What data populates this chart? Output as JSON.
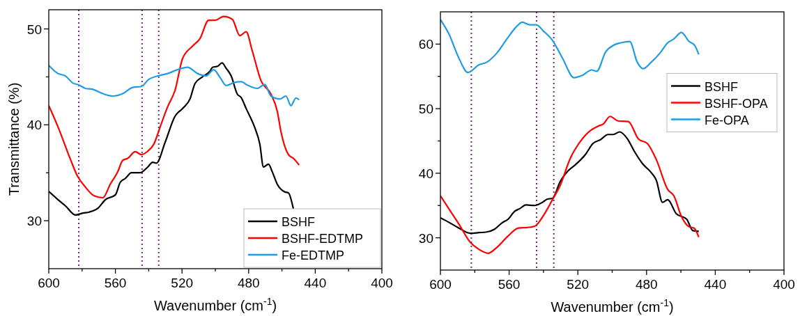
{
  "chart_data": [
    {
      "type": "line",
      "ylabel": "Transmittance (%)",
      "xlabel": "Wavenumber (cm$^{-1}$)",
      "xlim": [
        600,
        400
      ],
      "ylim": [
        25,
        52
      ],
      "xticks": [
        600,
        {
          "value": 580,
          "label": null
        },
        560,
        {
          "value": 540,
          "label": null
        },
        520,
        {
          "value": 500,
          "label": null
        },
        480,
        {
          "value": 460,
          "label": null
        },
        440,
        {
          "value": 420,
          "label": null
        },
        400
      ],
      "yticks": [
        30,
        {
          "value": 35,
          "label": null
        },
        40,
        {
          "value": 45,
          "label": null
        },
        50
      ],
      "legend": "bottom right",
      "grid": false,
      "marker": "none",
      "line_style": "solid",
      "ref_lines": [
        {
          "axis": "x",
          "value": 582,
          "color": "#7b1f8a",
          "line_style": "dotted"
        },
        {
          "axis": "x",
          "value": 544,
          "color": "#7b1f8a",
          "line_style": "dotted"
        },
        {
          "axis": "x",
          "value": 534,
          "color": "#7b1f8a",
          "line_style": "dotted"
        }
      ],
      "series": [
        {
          "name": "BSHF",
          "color": "#000000",
          "x": [
            600,
            594.5,
            590,
            584,
            579.5,
            575.8,
            570.5,
            566,
            560,
            557.1,
            554.1,
            550.3,
            545.1,
            540.6,
            537.6,
            535.4,
            530.1,
            524.2,
            519.7,
            515.2,
            512.2,
            507.7,
            503.2,
            501.7,
            498.7,
            496,
            493.5,
            490.5,
            486.8,
            484.5,
            481.5,
            476.3,
            473.3,
            471.1,
            468.1,
            465.8,
            462.8,
            458.3,
            456.1,
            453.1
          ],
          "values": [
            33.05,
            32.2,
            31.55,
            30.6,
            30.8,
            30.9,
            31.3,
            32.2,
            32.7,
            34,
            34.4,
            35,
            35,
            35.6,
            36.1,
            36,
            38.2,
            40.9,
            41.7,
            42.7,
            44.3,
            45,
            45.6,
            46,
            46.1,
            46.45,
            45.9,
            45.1,
            43.2,
            42.85,
            41.7,
            39.7,
            38,
            35.6,
            35.9,
            35.1,
            33.8,
            33,
            32.9,
            31.2
          ]
        },
        {
          "name": "BSHF-EDTMP",
          "color": "#ff0000",
          "x": [
            600,
            594.5,
            587,
            583.2,
            578,
            572.8,
            567.5,
            563.1,
            558.6,
            555.6,
            552.6,
            548.1,
            544.4,
            540.6,
            536.9,
            533.1,
            528.6,
            524.2,
            519.7,
            513.7,
            509.2,
            504,
            500.2,
            495,
            489.8,
            485.3,
            481.5,
            477.8,
            472.6,
            466.6,
            462.8,
            460.6,
            456.1,
            453.1,
            449.7
          ],
          "values": [
            42,
            39.8,
            36.4,
            34.8,
            33.5,
            32.6,
            32.4,
            33.8,
            35.1,
            36.3,
            36.5,
            37.2,
            36.9,
            37.25,
            38,
            39.8,
            41.9,
            43.6,
            46.9,
            48.2,
            49,
            50.9,
            50.9,
            51.3,
            51,
            49.3,
            49.7,
            47.7,
            44.6,
            43.2,
            41.4,
            39.3,
            36.9,
            36.5,
            35.8
          ]
        },
        {
          "name": "Fe-EDTMP",
          "color": "#1f9be6",
          "x": [
            600,
            594.5,
            590,
            585.5,
            582.5,
            578,
            573.5,
            567.5,
            561.6,
            555.6,
            549.6,
            544.4,
            539.9,
            534.6,
            528.6,
            522.7,
            516.7,
            510.7,
            505.5,
            501,
            497.2,
            493.5,
            489,
            484.5,
            480.8,
            474.8,
            470.3,
            466.6,
            461.3,
            457.6,
            454.6,
            451.6,
            449.7
          ],
          "values": [
            46.2,
            45.35,
            45.1,
            44.35,
            44.2,
            43.8,
            43.7,
            43.25,
            43,
            43.25,
            43.9,
            44,
            44.75,
            45.1,
            45.35,
            45.75,
            46,
            45.35,
            45.1,
            45.75,
            44.95,
            44.1,
            44.4,
            44.5,
            44.15,
            43.8,
            44.2,
            43,
            42.7,
            43,
            42,
            42.8,
            42.6
          ]
        }
      ]
    },
    {
      "type": "line",
      "xlabel": "Wavenumber (cm$^{-1}$)",
      "xlim": [
        600,
        400
      ],
      "ylim": [
        25,
        65
      ],
      "xticks": [
        600,
        {
          "value": 580,
          "label": null
        },
        560,
        {
          "value": 540,
          "label": null
        },
        520,
        {
          "value": 500,
          "label": null
        },
        480,
        {
          "value": 460,
          "label": null
        },
        440,
        {
          "value": 420,
          "label": null
        },
        400
      ],
      "yticks": [
        30,
        {
          "value": 35,
          "label": null
        },
        40,
        {
          "value": 45,
          "label": null
        },
        50,
        {
          "value": 55,
          "label": null
        },
        60
      ],
      "legend": "right",
      "grid": false,
      "marker": "none",
      "line_style": "solid",
      "ref_lines": [
        {
          "axis": "x",
          "value": 582,
          "color": "#7b1f8a",
          "line_style": "dotted"
        },
        {
          "axis": "x",
          "value": 544,
          "color": "#7b1f8a",
          "line_style": "dotted"
        },
        {
          "axis": "x",
          "value": 534,
          "color": "#7b1f8a",
          "line_style": "dotted"
        }
      ],
      "series": [
        {
          "name": "BSHF",
          "color": "#000000",
          "x": [
            600,
            595.1,
            589.2,
            582.6,
            577.5,
            573,
            568.6,
            564.2,
            560.5,
            556.8,
            553.9,
            550.2,
            545.1,
            540.6,
            537.7,
            534.8,
            530.3,
            525.9,
            521.5,
            515.6,
            511.2,
            506.8,
            502.4,
            499.4,
            495.7,
            491.3,
            486.9,
            482.4,
            477.3,
            474.3,
            470.7,
            467.7,
            462.6,
            456.7,
            453,
            449.6
          ],
          "values": [
            33.1,
            32.4,
            31.5,
            30.7,
            30.8,
            30.9,
            31.3,
            32.3,
            32.9,
            34.1,
            34.5,
            35.1,
            35,
            35.5,
            36,
            36.1,
            38.7,
            40.3,
            41.3,
            42.9,
            44.6,
            45.2,
            46,
            46,
            46.4,
            45.4,
            43.3,
            41.5,
            40.1,
            38.9,
            35.5,
            35.9,
            33.7,
            32.9,
            31.1,
            31
          ]
        },
        {
          "name": "BSHF-OPA",
          "color": "#ff0000",
          "x": [
            600,
            595.1,
            589.2,
            582.6,
            577.5,
            572.3,
            567.2,
            560.5,
            554.6,
            549.5,
            545.1,
            539.9,
            534.8,
            530.3,
            524.4,
            518.6,
            512.7,
            508.2,
            505.3,
            501.2,
            496.5,
            490.6,
            484.7,
            479.5,
            474.3,
            467.7,
            464.1,
            459.7,
            455.2,
            452.3,
            449.6
          ],
          "values": [
            36.5,
            34.5,
            32.1,
            29.3,
            28.2,
            27.6,
            28.5,
            30.3,
            31.5,
            31.6,
            31.8,
            33.5,
            35.9,
            38.1,
            42.3,
            44.9,
            46.6,
            47.3,
            47.6,
            48.8,
            48.1,
            48,
            45.3,
            44.6,
            42.1,
            37.5,
            36.5,
            33.3,
            31.7,
            31.5,
            30.1
          ]
        },
        {
          "name": "Fe-OPA",
          "color": "#1f9be6",
          "x": [
            600,
            595.1,
            589.2,
            584,
            577.5,
            573,
            567.2,
            561.3,
            555.4,
            552.4,
            548,
            544.3,
            539.9,
            534.8,
            528.9,
            522.2,
            517.1,
            511.9,
            509,
            503.8,
            499.4,
            495,
            489.8,
            485.4,
            482,
            477.3,
            472.2,
            467.7,
            464.1,
            459.7,
            455.2,
            452,
            449.6
          ],
          "values": [
            63.8,
            61.6,
            57.8,
            55.6,
            56.8,
            57.2,
            58.6,
            60.8,
            62.8,
            63.4,
            63,
            63,
            62,
            60.6,
            57.8,
            54.8,
            55.2,
            56,
            55.8,
            58.8,
            59.8,
            60.2,
            60.4,
            57.2,
            56.2,
            57.2,
            58.6,
            60.2,
            60.8,
            61.8,
            60.4,
            59.8,
            58.4
          ]
        }
      ]
    }
  ]
}
